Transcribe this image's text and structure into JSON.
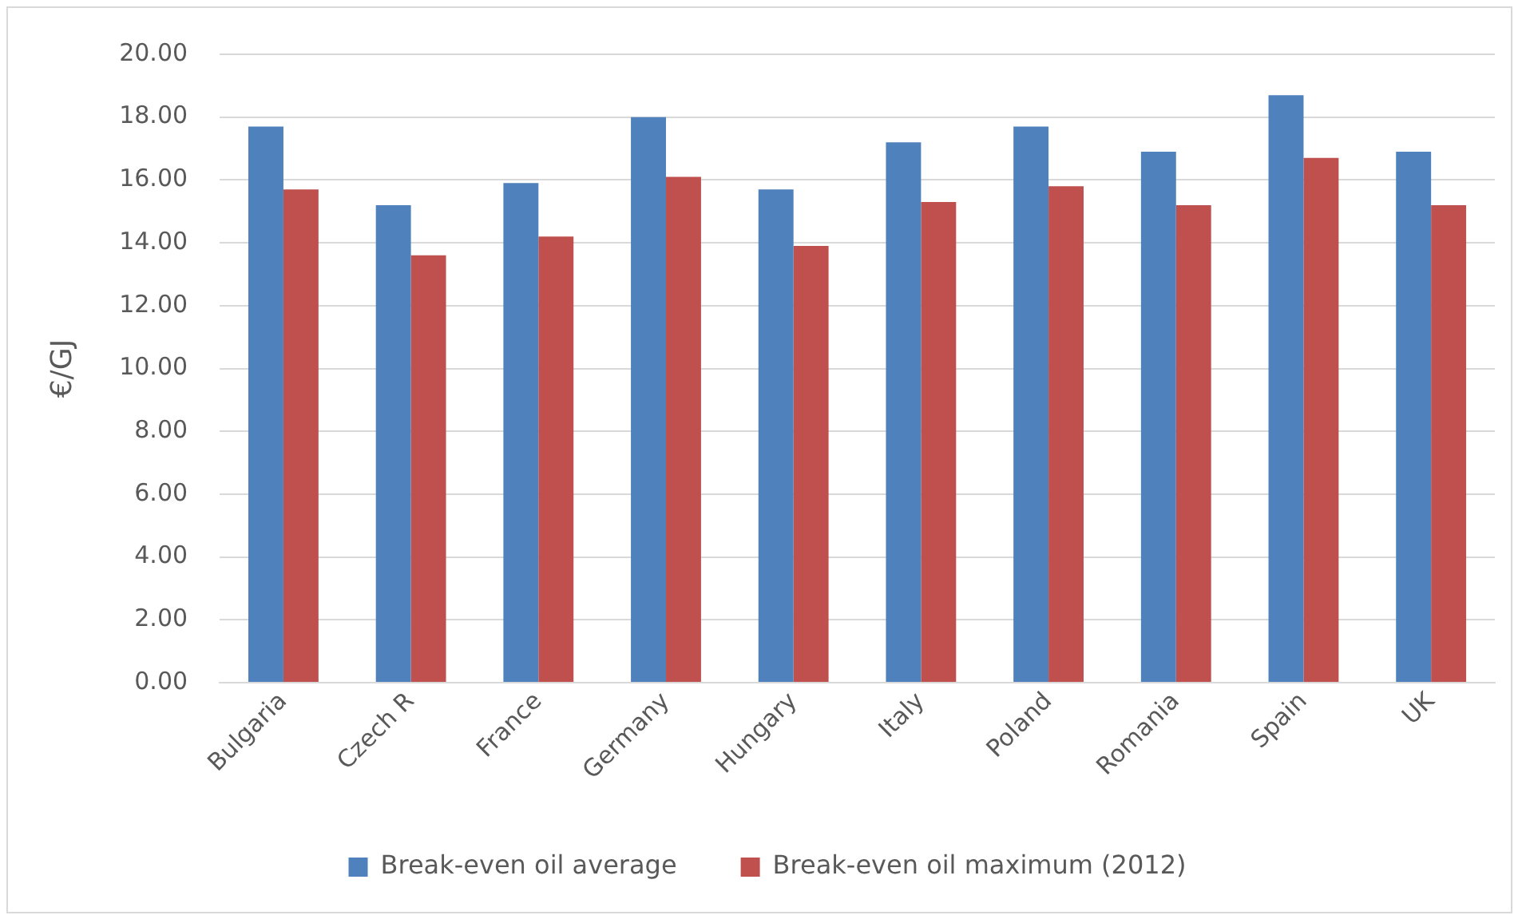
{
  "chart_data": {
    "type": "bar",
    "ylabel": "€/GJ",
    "categories": [
      "Bulgaria",
      "Czech R",
      "France",
      "Germany",
      "Hungary",
      "Italy",
      "Poland",
      "Romania",
      "Spain",
      "UK"
    ],
    "series": [
      {
        "name": "Break-even oil average",
        "color": "#4f81bd",
        "values": [
          17.7,
          15.2,
          15.9,
          18.0,
          15.7,
          17.2,
          17.7,
          16.9,
          18.7,
          16.9
        ]
      },
      {
        "name": "Break-even oil maximum (2012)",
        "color": "#c0504d",
        "values": [
          15.7,
          13.6,
          14.2,
          16.1,
          13.9,
          15.3,
          15.8,
          15.2,
          16.7,
          15.2
        ]
      }
    ],
    "ylim": [
      0,
      20
    ],
    "yticks": [
      {
        "value": 0,
        "label": "0.00"
      },
      {
        "value": 2,
        "label": "2.00"
      },
      {
        "value": 4,
        "label": "4.00"
      },
      {
        "value": 6,
        "label": "6.00"
      },
      {
        "value": 8,
        "label": "8.00"
      },
      {
        "value": 10,
        "label": "10.00"
      },
      {
        "value": 12,
        "label": "12.00"
      },
      {
        "value": 14,
        "label": "14.00"
      },
      {
        "value": 16,
        "label": "16.00"
      },
      {
        "value": 18,
        "label": "18.00"
      },
      {
        "value": 20,
        "label": "20.00"
      }
    ],
    "grid": "y",
    "legend": "bottom"
  }
}
